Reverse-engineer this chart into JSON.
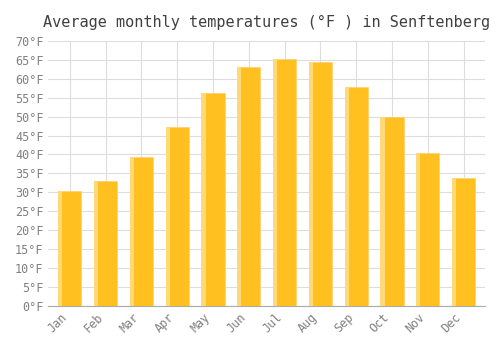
{
  "title": "Average monthly temperatures (°F ) in Senftenberg",
  "months": [
    "Jan",
    "Feb",
    "Mar",
    "Apr",
    "May",
    "Jun",
    "Jul",
    "Aug",
    "Sep",
    "Oct",
    "Nov",
    "Dec"
  ],
  "values": [
    30.4,
    33.1,
    39.4,
    47.3,
    56.3,
    63.0,
    65.3,
    64.4,
    57.9,
    50.0,
    40.5,
    33.8
  ],
  "bar_color_main": "#FFC020",
  "bar_color_edge": "#FFD070",
  "background_color": "#FFFFFF",
  "grid_color": "#DDDDDD",
  "title_color": "#404040",
  "tick_label_color": "#808080",
  "ylim": [
    0,
    70
  ],
  "ytick_step": 5,
  "title_fontsize": 11,
  "tick_fontsize": 8.5,
  "font_family": "monospace"
}
